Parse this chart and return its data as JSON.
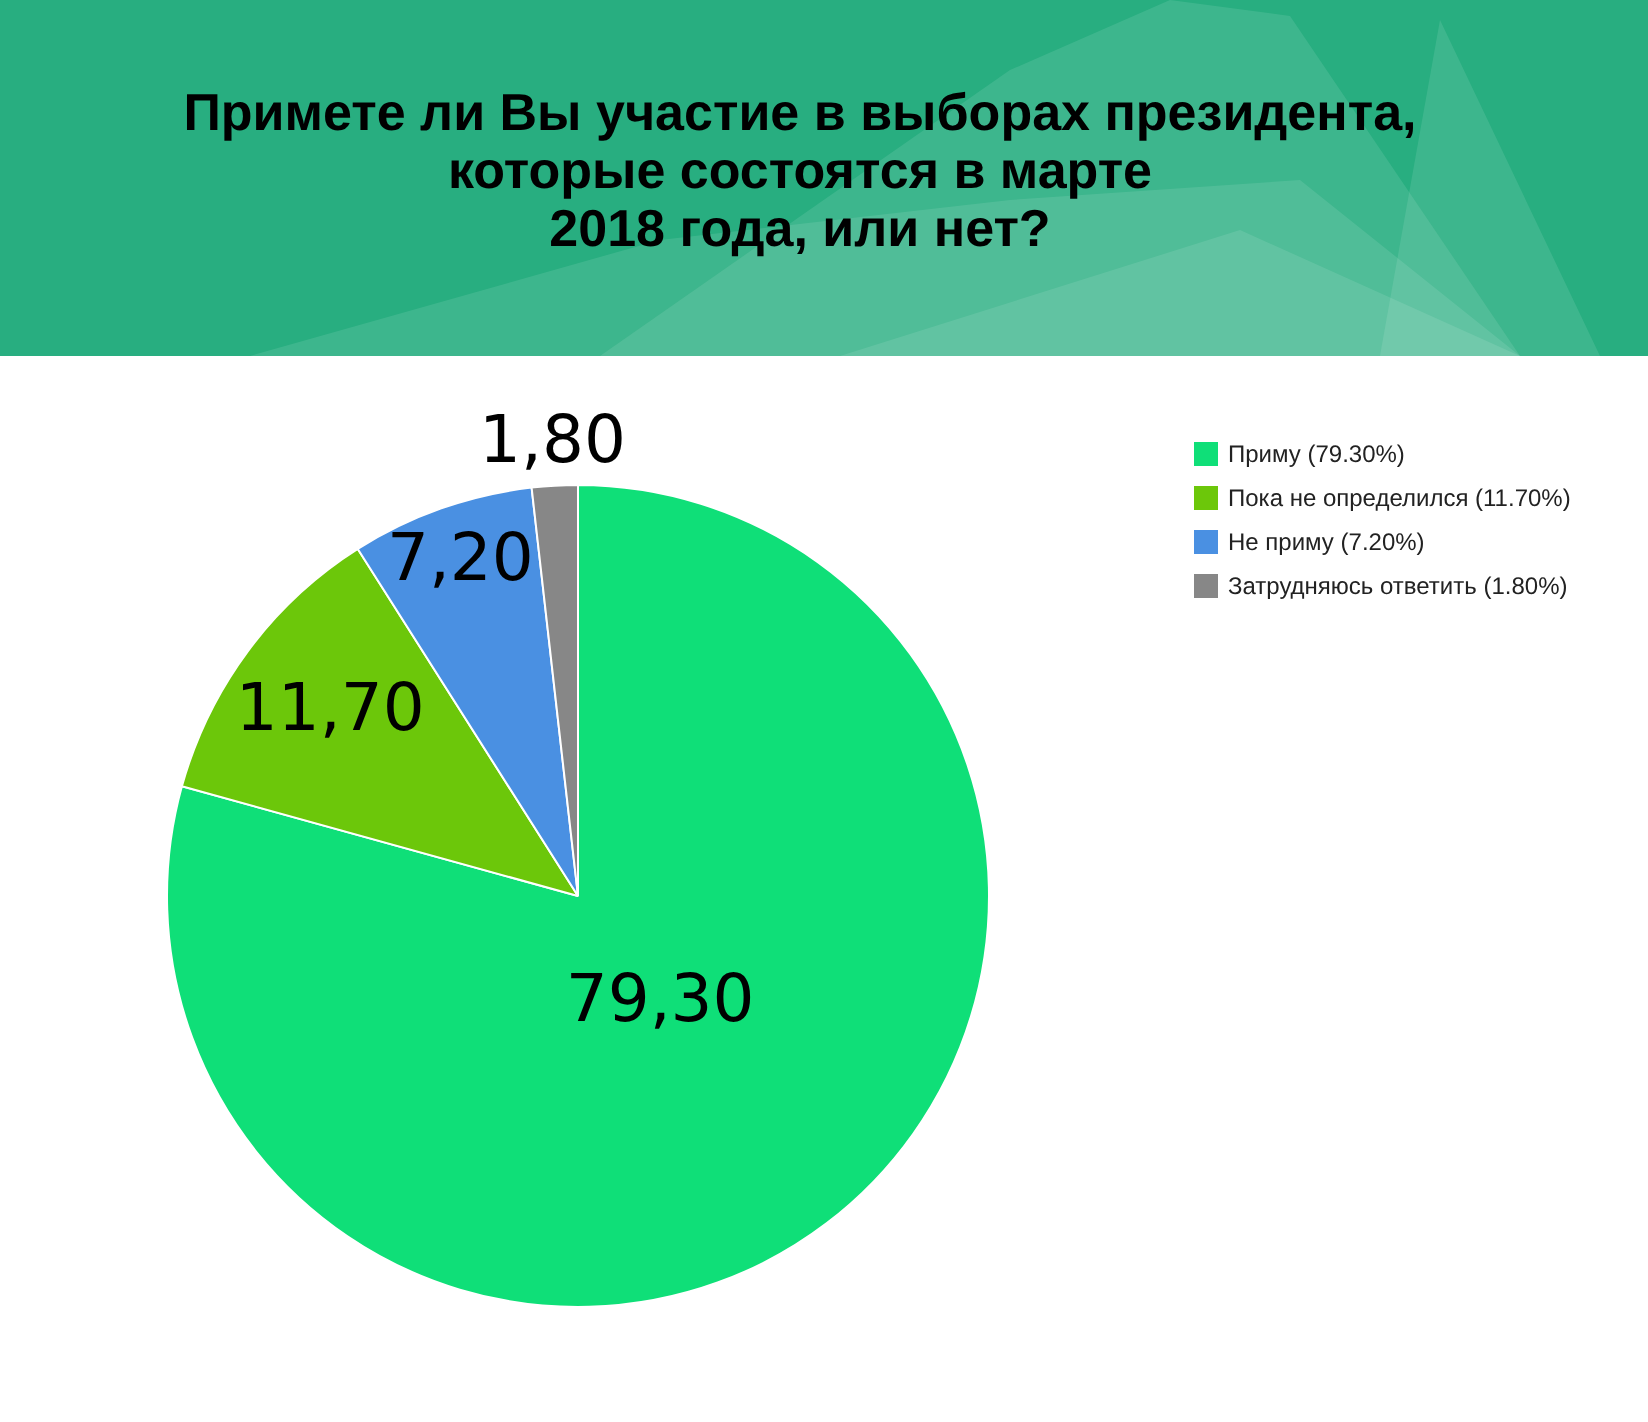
{
  "chart_data": {
    "type": "pie",
    "title": "Примете ли Вы участие в выборах президента,\nкоторые состоятся в марте\n2018 года, или нет?",
    "categories": [
      "Приму (79.30%)",
      "Пока не определился (11.70%)",
      "Не приму (7.20%)",
      "Затрудняюсь ответить (1.80%)"
    ],
    "values": [
      79.3,
      11.7,
      7.2,
      1.8
    ],
    "colors": [
      "#0fdf78",
      "#6cc70a",
      "#4a90e2",
      "#878787"
    ],
    "value_labels": [
      "79,30",
      "11,70",
      "7,20",
      "1,80"
    ],
    "legend": "top right"
  }
}
